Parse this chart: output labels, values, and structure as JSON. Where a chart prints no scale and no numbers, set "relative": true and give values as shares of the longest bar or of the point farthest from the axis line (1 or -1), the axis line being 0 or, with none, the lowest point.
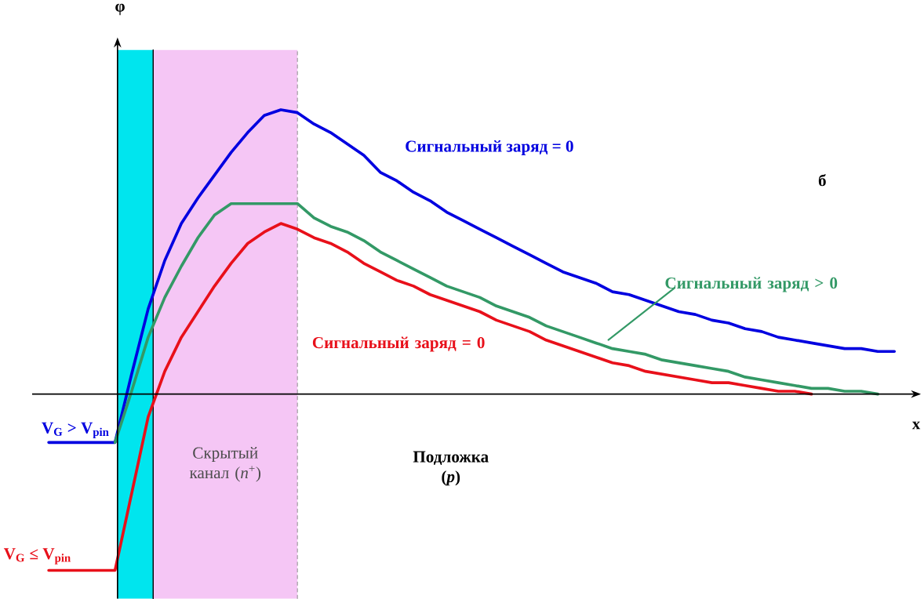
{
  "chart_data": {
    "type": "line",
    "relative": true,
    "xlabel": "x",
    "categories": [
      null,
      null,
      null,
      null,
      null,
      null,
      null,
      null,
      null,
      null,
      null,
      null,
      null,
      null,
      null,
      null,
      null,
      null,
      null,
      null,
      null,
      null,
      null,
      null,
      null,
      null,
      null,
      null,
      null,
      null,
      null,
      null,
      null,
      null,
      null,
      null,
      null,
      null,
      null,
      null,
      null,
      null,
      null,
      null,
      null,
      null,
      null,
      null,
      null,
      null,
      null,
      null
    ],
    "series": [
      {
        "name": "Сигнальный заряд = 0",
        "color": "#0000e0",
        "values": [
          -0.17,
          -0.17,
          -0.17,
          -0.17,
          -0.17,
          0.07,
          0.3,
          0.47,
          0.6,
          0.69,
          0.77,
          0.85,
          0.92,
          0.98,
          1.0,
          0.99,
          0.95,
          0.92,
          0.88,
          0.84,
          0.78,
          0.75,
          0.71,
          0.68,
          0.64,
          0.61,
          0.58,
          0.55,
          0.52,
          0.49,
          0.46,
          0.43,
          0.41,
          0.39,
          0.36,
          0.35,
          0.33,
          0.31,
          0.29,
          0.28,
          0.26,
          0.25,
          0.23,
          0.22,
          0.2,
          0.19,
          0.18,
          0.17,
          0.16,
          0.16,
          0.15,
          0.15
        ]
      },
      {
        "name": "Сигнальный заряд > 0",
        "color": "#339966",
        "values": [
          null,
          null,
          null,
          null,
          -0.17,
          0.01,
          0.2,
          0.34,
          0.45,
          0.55,
          0.63,
          0.67,
          0.67,
          0.67,
          0.67,
          0.67,
          0.62,
          0.59,
          0.57,
          0.54,
          0.5,
          0.47,
          0.44,
          0.41,
          0.38,
          0.36,
          0.34,
          0.31,
          0.29,
          0.27,
          0.24,
          0.22,
          0.2,
          0.18,
          0.16,
          0.15,
          0.14,
          0.12,
          0.11,
          0.1,
          0.09,
          0.08,
          0.06,
          0.05,
          0.04,
          0.03,
          0.02,
          0.02,
          0.01,
          0.01,
          0,
          null
        ]
      },
      {
        "name": "Сигнальный заряд = 0",
        "color": "#e8101a",
        "values": [
          -0.62,
          -0.62,
          -0.62,
          -0.62,
          -0.62,
          -0.35,
          -0.08,
          0.08,
          0.2,
          0.29,
          0.38,
          0.46,
          0.53,
          0.57,
          0.6,
          0.58,
          0.55,
          0.53,
          0.5,
          0.46,
          0.43,
          0.4,
          0.38,
          0.35,
          0.33,
          0.31,
          0.29,
          0.26,
          0.24,
          0.22,
          0.19,
          0.17,
          0.15,
          0.13,
          0.11,
          0.1,
          0.08,
          0.07,
          0.06,
          0.05,
          0.04,
          0.04,
          0.03,
          0.02,
          0.01,
          0.01,
          0,
          null,
          null,
          null,
          null,
          null
        ]
      }
    ],
    "annotations": [
      "б",
      "Подложка (*p*)",
      "V$_{G}$ > V$_{pin}$",
      "V$_{G}$ ≤ V$_{pin}$",
      "φ",
      "Скрытый канал (*n*$^{+}$)"
    ]
  }
}
